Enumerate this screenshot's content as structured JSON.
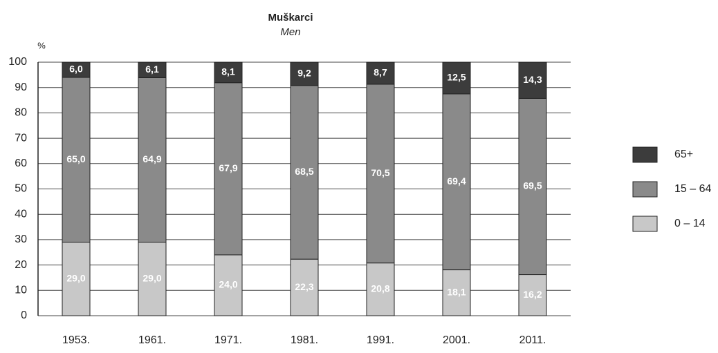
{
  "chart_data": {
    "type": "stacked_bar",
    "title": "Muškarci",
    "subtitle": "Men",
    "y_label": "%",
    "categories": [
      "1953.",
      "1961.",
      "1971.",
      "1981.",
      "1991.",
      "2001.",
      "2011."
    ],
    "series": [
      {
        "name": "0 – 14",
        "color": "#c8c8c8",
        "values": [
          29.0,
          29.0,
          24.0,
          22.3,
          20.8,
          18.1,
          16.2
        ],
        "value_labels": [
          "29,0",
          "29,0",
          "24,0",
          "22,3",
          "20,8",
          "18,1",
          "16,2"
        ]
      },
      {
        "name": "15 – 64",
        "color": "#8a8a8a",
        "values": [
          65.0,
          64.9,
          67.9,
          68.5,
          70.5,
          69.4,
          69.5
        ],
        "value_labels": [
          "65,0",
          "64,9",
          "67,9",
          "68,5",
          "70,5",
          "69,4",
          "69,5"
        ]
      },
      {
        "name": "65+",
        "color": "#3c3c3c",
        "values": [
          6.0,
          6.1,
          8.1,
          9.2,
          8.7,
          12.5,
          14.3
        ],
        "value_labels": [
          "6,0",
          "6,1",
          "8,1",
          "9,2",
          "8,7",
          "12,5",
          "14,3"
        ]
      }
    ],
    "ylim": [
      0,
      100
    ],
    "yticks": [
      0,
      10,
      20,
      30,
      40,
      50,
      60,
      70,
      80,
      90,
      100
    ],
    "grid": true,
    "legend": "right"
  }
}
